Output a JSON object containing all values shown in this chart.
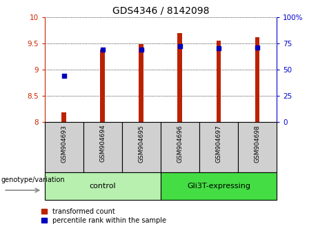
{
  "title": "GDS4346 / 8142098",
  "samples": [
    "GSM904693",
    "GSM904694",
    "GSM904695",
    "GSM904696",
    "GSM904697",
    "GSM904698"
  ],
  "red_values": [
    8.18,
    9.38,
    9.48,
    9.7,
    9.55,
    9.62
  ],
  "blue_values": [
    44,
    69,
    69,
    72,
    70,
    71
  ],
  "ylim_left": [
    8.0,
    10.0
  ],
  "ylim_right": [
    0,
    100
  ],
  "yticks_left": [
    8.0,
    8.5,
    9.0,
    9.5,
    10.0
  ],
  "yticks_right": [
    0,
    25,
    50,
    75,
    100
  ],
  "left_tick_labels": [
    "8",
    "8.5",
    "9",
    "9.5",
    "10"
  ],
  "right_tick_labels": [
    "0",
    "25",
    "50",
    "75",
    "100%"
  ],
  "bar_width": 0.12,
  "bar_bottom": 8.0,
  "blue_marker_size": 18,
  "grid_color": "black",
  "red_color": "#bb2200",
  "blue_color": "#0000bb",
  "left_axis_color": "#cc2200",
  "right_axis_color": "#0000cc",
  "group_color_control": "#b8f0b0",
  "group_color_gli3t": "#44dd44",
  "sample_area_color": "#d0d0d0",
  "legend_red_label": "transformed count",
  "legend_blue_label": "percentile rank within the sample",
  "genotype_label": "genotype/variation",
  "group_info": [
    {
      "label": "control",
      "start": 0,
      "end": 3
    },
    {
      "label": "Gli3T-expressing",
      "start": 3,
      "end": 6
    }
  ],
  "title_fontsize": 10,
  "tick_fontsize": 7.5,
  "sample_fontsize": 6.5,
  "group_fontsize": 8,
  "legend_fontsize": 7,
  "geno_fontsize": 7
}
